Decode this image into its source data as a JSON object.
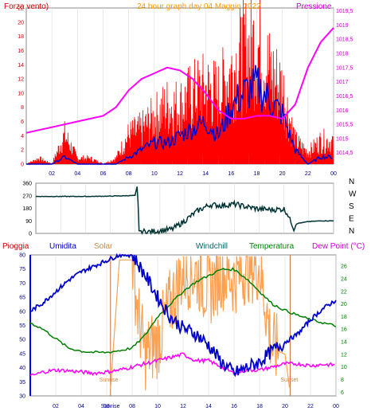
{
  "colors": {
    "wind": "#ff0000",
    "wind_avg": "#0000cc",
    "pressure": "#ff00ff",
    "dir": "#003333",
    "humidity": "#0000cc",
    "solar": "#ffa050",
    "windchill": "#006666",
    "temp": "#008000",
    "dewpoint": "#ff00ff",
    "rain": "#cc0000",
    "frame": "#888888",
    "sun_line": "#cc6633"
  },
  "chart_data": [
    {
      "type": "line",
      "title": "24 hour graph day   04 Maggio 2022",
      "left_label": "Forza vento)",
      "right_label": "Pressione",
      "x_ticks": [
        "02",
        "04",
        "06",
        "08",
        "10",
        "12",
        "14",
        "16",
        "18",
        "20",
        "22",
        "00"
      ],
      "y_left_ticks": [
        "0",
        "2",
        "4",
        "6",
        "8",
        "10",
        "12",
        "14",
        "16",
        "18",
        "20",
        "22"
      ],
      "y_right_ticks": [
        "1014,5",
        "1015",
        "1015,5",
        "1016",
        "1016,5",
        "1017",
        "1017,5",
        "1018",
        "1018,5",
        "1019",
        "1019,5"
      ],
      "ylim_left": [
        0,
        22
      ],
      "ylim_right": [
        1014.1,
        1019.6
      ],
      "x_hours": [
        0,
        24
      ],
      "series": [
        {
          "id": "pressure",
          "x": [
            0,
            1,
            2,
            3,
            4,
            5,
            6,
            7,
            8,
            9,
            10,
            11,
            12,
            13,
            14,
            15,
            16,
            17,
            18,
            19,
            20,
            21,
            22,
            23,
            24
          ],
          "y": [
            1015.2,
            1015.3,
            1015.4,
            1015.5,
            1015.6,
            1015.7,
            1015.8,
            1016.1,
            1016.7,
            1017.1,
            1017.3,
            1017.5,
            1017.4,
            1017.1,
            1016.6,
            1016.0,
            1015.7,
            1015.7,
            1015.8,
            1015.8,
            1015.7,
            1016.2,
            1017.5,
            1018.4,
            1018.9
          ]
        },
        {
          "id": "wind_gust",
          "x": [
            0,
            1,
            2,
            3,
            4,
            5,
            6,
            7,
            8,
            9,
            10,
            11,
            12,
            13,
            14,
            15,
            16,
            17,
            18,
            19,
            20,
            21,
            22,
            23,
            24
          ],
          "y": [
            0,
            1,
            0,
            5,
            1,
            1,
            0,
            1,
            5,
            6,
            8,
            10,
            10,
            12,
            13,
            12,
            16,
            19,
            21,
            16,
            13,
            4,
            2,
            4,
            4
          ]
        },
        {
          "id": "wind_avg",
          "x": [
            0,
            1,
            2,
            3,
            4,
            5,
            6,
            7,
            8,
            9,
            10,
            11,
            12,
            13,
            14,
            15,
            16,
            17,
            18,
            19,
            20,
            21,
            22,
            23,
            24
          ],
          "y": [
            0,
            0,
            0,
            1,
            0,
            0,
            0,
            0,
            1,
            2,
            3,
            3,
            4,
            5,
            6,
            4,
            8,
            10,
            11,
            9,
            7,
            2,
            0,
            1,
            1
          ]
        }
      ]
    },
    {
      "type": "line",
      "title": "",
      "y_ticks": [
        "0",
        "90",
        "180",
        "270",
        "360"
      ],
      "compass": [
        "N",
        "W",
        "S",
        "E",
        "N"
      ],
      "ylim": [
        0,
        360
      ],
      "series": [
        {
          "id": "wind_dir",
          "x": [
            0,
            2,
            4,
            6,
            8,
            8.2,
            8.3,
            9,
            10,
            11,
            12,
            13,
            14,
            15,
            16,
            17,
            18,
            19,
            20,
            20.3,
            20.8,
            21,
            22,
            23,
            24
          ],
          "y": [
            265,
            265,
            265,
            267,
            272,
            350,
            20,
            10,
            20,
            30,
            90,
            160,
            205,
            200,
            210,
            190,
            175,
            170,
            175,
            140,
            20,
            70,
            85,
            90,
            90
          ]
        }
      ]
    },
    {
      "type": "line",
      "labels": [
        "Pioggia",
        "Umidita",
        "Solar",
        "Windchill",
        "Temperatura",
        "Dew Point (°C)"
      ],
      "x_ticks": [
        "02",
        "04",
        "06",
        "08",
        "10",
        "12",
        "14",
        "16",
        "18",
        "20",
        "22",
        "00"
      ],
      "y_left_ticks": [
        "30",
        "35",
        "40",
        "45",
        "50",
        "55",
        "60",
        "65",
        "70",
        "75",
        "80"
      ],
      "y_right_ticks": [
        "6",
        "8",
        "10",
        "12",
        "14",
        "16",
        "18",
        "20",
        "22",
        "24",
        "26"
      ],
      "ylim_left": [
        30,
        80
      ],
      "ylim_right": [
        5.4,
        27.8
      ],
      "rain_scale": [
        0,
        1
      ],
      "sunrise_label": "Sunrise",
      "sunset_label": "Sunset",
      "sunrise_hour": 6.3,
      "sunset_hour": 20.4,
      "series": [
        {
          "id": "humidity",
          "x": [
            0,
            1,
            2,
            3,
            4,
            5,
            6,
            7,
            8,
            9,
            10,
            11,
            12,
            13,
            14,
            15,
            16,
            17,
            18,
            19,
            20,
            21,
            22,
            23,
            24
          ],
          "y": [
            60,
            63,
            67,
            71,
            74,
            76,
            78,
            80,
            80,
            73,
            65,
            58,
            54,
            52,
            48,
            42,
            38,
            40,
            42,
            46,
            49,
            52,
            57,
            61,
            64
          ]
        },
        {
          "id": "temperature",
          "x": [
            0,
            1,
            2,
            3,
            4,
            5,
            6,
            7,
            8,
            9,
            10,
            11,
            12,
            13,
            14,
            15,
            16,
            17,
            18,
            19,
            20,
            21,
            22,
            23,
            24
          ],
          "y": [
            17,
            16,
            14.5,
            13,
            12.5,
            12.3,
            12.3,
            12.6,
            13,
            15,
            18,
            20,
            22,
            23.5,
            24.5,
            25.5,
            25.5,
            24,
            22,
            20,
            19,
            18.2,
            17.5,
            17,
            16.5
          ]
        },
        {
          "id": "dewpoint",
          "x": [
            0,
            1,
            2,
            3,
            4,
            5,
            6,
            7,
            8,
            9,
            10,
            11,
            12,
            13,
            14,
            15,
            16,
            17,
            18,
            19,
            20,
            21,
            22,
            23,
            24
          ],
          "y": [
            8.5,
            9.2,
            9.5,
            9.4,
            9.2,
            9.0,
            9.2,
            9.5,
            10,
            10.5,
            11,
            11.5,
            12,
            11,
            11,
            10,
            9,
            9.5,
            9.5,
            10,
            10.5,
            10.5,
            10.2,
            10.4,
            10.3
          ]
        },
        {
          "id": "solar",
          "x": [
            6.3,
            7,
            8,
            8.5,
            9,
            10,
            11,
            12,
            13,
            14,
            15,
            16,
            17,
            18,
            19,
            20,
            20.4
          ],
          "y": [
            6.5,
            27,
            27,
            18,
            12,
            14,
            20,
            25,
            25,
            22,
            25,
            24,
            26,
            26,
            13,
            12,
            6
          ]
        }
      ]
    }
  ]
}
